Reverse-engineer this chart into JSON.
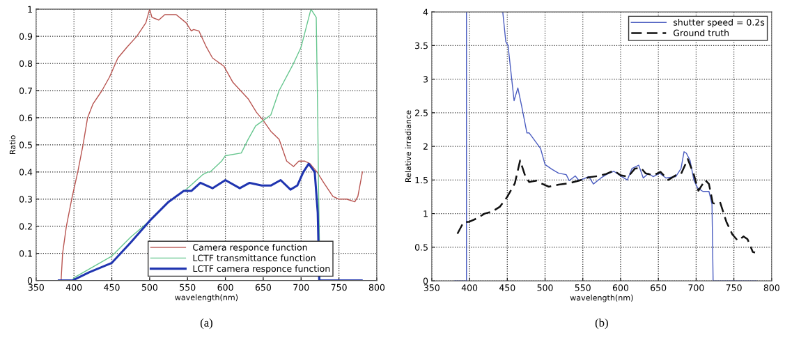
{
  "chart_data": [
    {
      "type": "line",
      "xlabel": "wavelength(nm)",
      "ylabel": "Ratio",
      "xlim": [
        350,
        800
      ],
      "ylim": [
        0,
        1
      ],
      "xticks": [
        350,
        400,
        450,
        500,
        550,
        600,
        650,
        700,
        750,
        800
      ],
      "yticks": [
        0,
        0.1,
        0.2,
        0.3,
        0.4,
        0.5,
        0.6,
        0.7,
        0.8,
        0.9,
        1
      ],
      "grid": true,
      "legend": "bottom",
      "annotations": [
        "(a)"
      ],
      "series": [
        {
          "name": "Camera responce function",
          "color": "#b85450",
          "x": [
            383,
            385,
            390,
            397,
            405,
            412,
            418,
            425,
            437,
            447,
            458,
            470,
            483,
            495,
            500,
            503,
            512,
            520,
            535,
            548,
            555,
            558,
            565,
            575,
            583,
            598,
            610,
            620,
            630,
            641,
            650,
            660,
            671,
            681,
            690,
            697,
            705,
            712,
            721,
            730,
            742,
            750,
            760,
            771,
            775,
            781
          ],
          "values": [
            0,
            0.1,
            0.2,
            0.3,
            0.4,
            0.5,
            0.6,
            0.65,
            0.7,
            0.75,
            0.82,
            0.86,
            0.9,
            0.95,
            1.0,
            0.97,
            0.96,
            0.98,
            0.98,
            0.95,
            0.92,
            0.925,
            0.92,
            0.86,
            0.82,
            0.79,
            0.73,
            0.7,
            0.67,
            0.62,
            0.59,
            0.55,
            0.52,
            0.44,
            0.42,
            0.44,
            0.44,
            0.43,
            0.4,
            0.36,
            0.31,
            0.3,
            0.3,
            0.29,
            0.31,
            0.4
          ]
        },
        {
          "name": "LCTF transmittance function",
          "color": "#66c68e",
          "x": [
            398,
            400,
            425,
            450,
            475,
            500,
            525,
            550,
            570,
            577,
            580,
            595,
            600,
            621,
            630,
            640,
            650,
            660,
            671,
            690,
            700,
            713,
            720,
            722,
            723,
            725
          ],
          "values": [
            0,
            0.01,
            0.05,
            0.09,
            0.16,
            0.22,
            0.29,
            0.34,
            0.39,
            0.4,
            0.4,
            0.44,
            0.46,
            0.47,
            0.52,
            0.57,
            0.59,
            0.61,
            0.7,
            0.8,
            0.86,
            1.0,
            0.97,
            0.6,
            0.35,
            0
          ]
        },
        {
          "name": "LCTF camera responce function",
          "color": "#2035b0",
          "x": [
            380,
            398,
            420,
            450,
            475,
            500,
            525,
            545,
            555,
            567,
            583,
            600,
            619,
            632,
            648,
            660,
            673,
            686,
            695,
            703,
            710,
            718,
            722,
            724,
            780
          ],
          "values": [
            0,
            0,
            0.03,
            0.065,
            0.14,
            0.22,
            0.29,
            0.33,
            0.33,
            0.36,
            0.34,
            0.37,
            0.34,
            0.36,
            0.35,
            0.35,
            0.37,
            0.335,
            0.35,
            0.4,
            0.43,
            0.4,
            0.25,
            0,
            0
          ]
        }
      ]
    },
    {
      "type": "line",
      "xlabel": "wavelength(nm)",
      "ylabel": "Relative irradiance",
      "xlim": [
        350,
        800
      ],
      "ylim": [
        0,
        4
      ],
      "xticks": [
        350,
        400,
        450,
        500,
        550,
        600,
        650,
        700,
        750,
        800
      ],
      "yticks": [
        0,
        0.5,
        1,
        1.5,
        2,
        2.5,
        3,
        3.5,
        4
      ],
      "grid": true,
      "legend": "top right",
      "annotations": [
        "(b)"
      ],
      "series": [
        {
          "name": "shutter speed = 0.2s",
          "color": "#4a5cc0",
          "line_style": "solid",
          "x": [
            380,
            396,
            396,
            420,
            444,
            448,
            451,
            459,
            464,
            469,
            476,
            479,
            490,
            494,
            500,
            509,
            518,
            528,
            532,
            540,
            545,
            558,
            564,
            574,
            581,
            591,
            600,
            609,
            615,
            624,
            630,
            637,
            643,
            652,
            660,
            673,
            680,
            684,
            687,
            692,
            697,
            702,
            709,
            717,
            721,
            722.5,
            780
          ],
          "values": [
            0,
            0,
            4,
            null,
            4,
            3.56,
            3.5,
            2.68,
            2.87,
            2.6,
            2.2,
            2.2,
            2.03,
            1.97,
            1.73,
            1.66,
            1.6,
            1.58,
            1.49,
            1.56,
            1.49,
            1.55,
            1.44,
            1.53,
            1.58,
            1.63,
            1.56,
            1.5,
            1.67,
            1.72,
            1.53,
            1.6,
            1.55,
            1.6,
            1.53,
            1.55,
            1.67,
            1.92,
            1.9,
            1.79,
            1.5,
            1.38,
            1.33,
            1.33,
            1.14,
            0,
            0
          ]
        },
        {
          "name": "Ground truth",
          "color": "#111111",
          "line_style": "dashed",
          "x": [
            384,
            392,
            400,
            410,
            420,
            430,
            440,
            450,
            460,
            467,
            474,
            479,
            489,
            495,
            505,
            518,
            531,
            545,
            558,
            571,
            581,
            591,
            600,
            610,
            619,
            627,
            633,
            643,
            653,
            663,
            673,
            680,
            689,
            697,
            703,
            712,
            717,
            722,
            726,
            732,
            740,
            748,
            755,
            763,
            768,
            775,
            778
          ],
          "values": [
            0.7,
            0.87,
            0.88,
            0.93,
            1.0,
            1.03,
            1.1,
            1.25,
            1.45,
            1.79,
            1.55,
            1.47,
            1.49,
            1.45,
            1.4,
            1.43,
            1.45,
            1.49,
            1.54,
            1.56,
            1.59,
            1.64,
            1.57,
            1.55,
            1.67,
            1.68,
            1.6,
            1.57,
            1.62,
            1.5,
            1.57,
            1.59,
            1.81,
            1.58,
            1.34,
            1.5,
            1.44,
            1.16,
            1.14,
            1.16,
            0.88,
            0.69,
            0.6,
            0.66,
            0.62,
            0.43,
            0.42
          ]
        }
      ]
    }
  ]
}
